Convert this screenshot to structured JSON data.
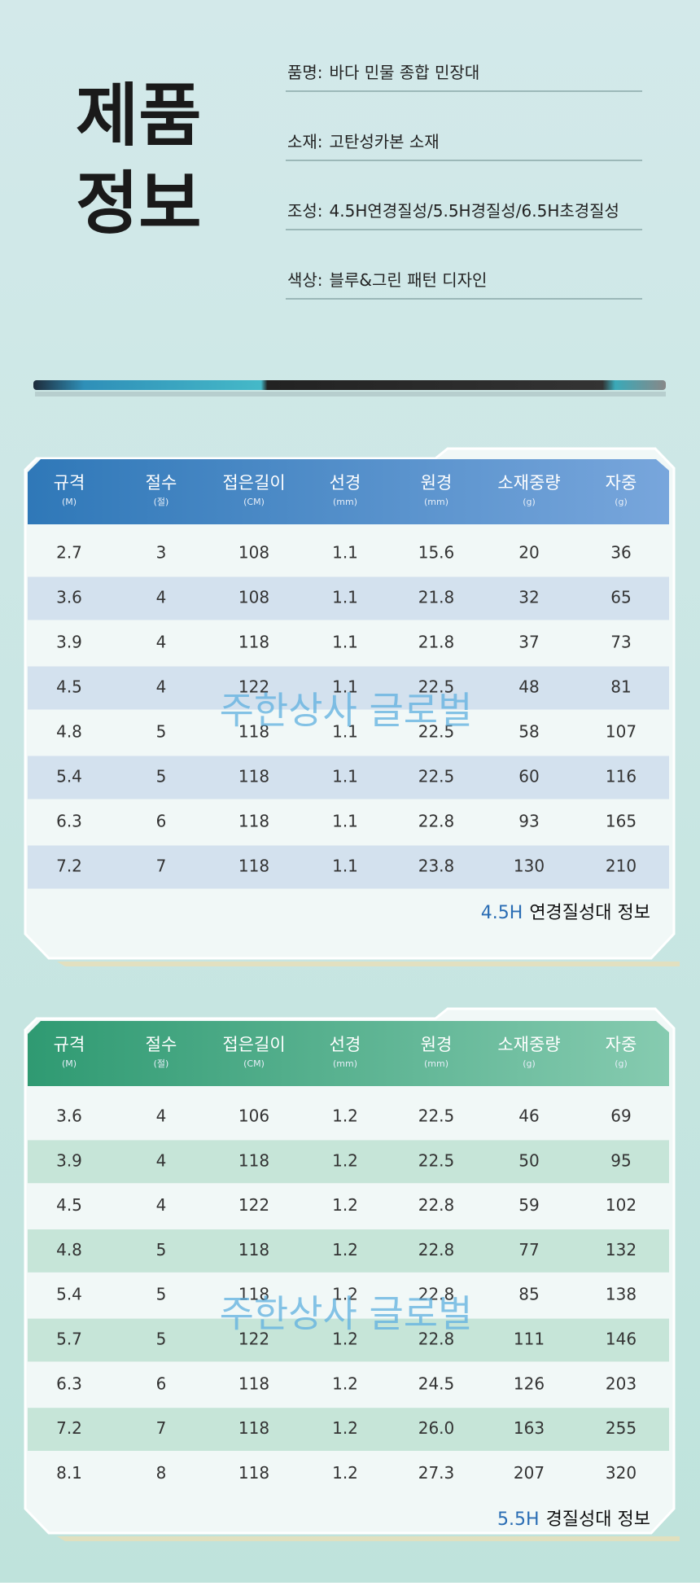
{
  "header": {
    "title": [
      "제품",
      "정보"
    ]
  },
  "info": [
    {
      "label": "품명:",
      "text": "바다 민물 종합 민장대"
    },
    {
      "label": "소재:",
      "text": "고탄성카본 소재"
    },
    {
      "label": "조성:",
      "text": "4.5H연경질성/5.5H경질성/6.5H초경질성"
    },
    {
      "label": "색상:",
      "text": "블루&그린 패턴 디자인"
    }
  ],
  "watermark": "주한상사 글로벌",
  "tables": [
    {
      "columns": [
        {
          "label": "규격",
          "unit": "(M)"
        },
        {
          "label": "절수",
          "unit": "(절)"
        },
        {
          "label": "접은길이",
          "unit": "(CM)"
        },
        {
          "label": "선경",
          "unit": "(mm)"
        },
        {
          "label": "원경",
          "unit": "(mm)"
        },
        {
          "label": "소재중량",
          "unit": "(g)"
        },
        {
          "label": "자중",
          "unit": "(g)"
        }
      ],
      "rows": [
        [
          "2.7",
          "3",
          "108",
          "1.1",
          "15.6",
          "20",
          "36"
        ],
        [
          "3.6",
          "4",
          "108",
          "1.1",
          "21.8",
          "32",
          "65"
        ],
        [
          "3.9",
          "4",
          "118",
          "1.1",
          "21.8",
          "37",
          "73"
        ],
        [
          "4.5",
          "4",
          "122",
          "1.1",
          "22.5",
          "48",
          "81"
        ],
        [
          "4.8",
          "5",
          "118",
          "1.1",
          "22.5",
          "58",
          "107"
        ],
        [
          "5.4",
          "5",
          "118",
          "1.1",
          "22.5",
          "60",
          "116"
        ],
        [
          "6.3",
          "6",
          "118",
          "1.1",
          "22.8",
          "93",
          "165"
        ],
        [
          "7.2",
          "7",
          "118",
          "1.1",
          "23.8",
          "130",
          "210"
        ]
      ],
      "caption": {
        "code": "4.5H",
        "text": "연경질성대 정보"
      }
    },
    {
      "columns": [
        {
          "label": "규격",
          "unit": "(M)"
        },
        {
          "label": "절수",
          "unit": "(절)"
        },
        {
          "label": "접은길이",
          "unit": "(CM)"
        },
        {
          "label": "선경",
          "unit": "(mm)"
        },
        {
          "label": "원경",
          "unit": "(mm)"
        },
        {
          "label": "소재중량",
          "unit": "(g)"
        },
        {
          "label": "자중",
          "unit": "(g)"
        }
      ],
      "rows": [
        [
          "3.6",
          "4",
          "106",
          "1.2",
          "22.5",
          "46",
          "69"
        ],
        [
          "3.9",
          "4",
          "118",
          "1.2",
          "22.5",
          "50",
          "95"
        ],
        [
          "4.5",
          "4",
          "122",
          "1.2",
          "22.8",
          "59",
          "102"
        ],
        [
          "4.8",
          "5",
          "118",
          "1.2",
          "22.8",
          "77",
          "132"
        ],
        [
          "5.4",
          "5",
          "118",
          "1.2",
          "22.8",
          "85",
          "138"
        ],
        [
          "5.7",
          "5",
          "122",
          "1.2",
          "22.8",
          "111",
          "146"
        ],
        [
          "6.3",
          "6",
          "118",
          "1.2",
          "24.5",
          "126",
          "203"
        ],
        [
          "7.2",
          "7",
          "118",
          "1.2",
          "26.0",
          "163",
          "255"
        ],
        [
          "8.1",
          "8",
          "118",
          "1.2",
          "27.3",
          "207",
          "320"
        ]
      ],
      "caption": {
        "code": "5.5H",
        "text": "경질성대 정보"
      }
    }
  ]
}
